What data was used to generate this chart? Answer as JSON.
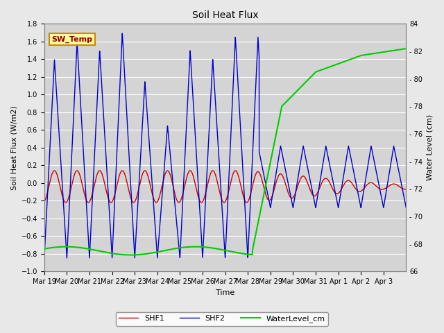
{
  "title": "Soil Heat Flux",
  "ylabel_left": "Soil Heat Flux (W/m2)",
  "ylabel_right": "Water Level (cm)",
  "xlabel": "Time",
  "ylim_left": [
    -1.0,
    1.8
  ],
  "ylim_right": [
    66,
    84
  ],
  "bg_color": "#e8e8e8",
  "plot_bg_color": "#d4d4d4",
  "grid_color": "#ffffff",
  "shf1_color": "#cc0000",
  "shf2_color": "#0000cc",
  "water_color": "#00cc00",
  "legend_label1": "SHF1",
  "legend_label2": "SHF2",
  "legend_label3": "WaterLevel_cm",
  "sw_temp_text": "SW_Temp",
  "sw_temp_bg": "#ffff99",
  "sw_temp_border": "#cc8800",
  "sw_temp_text_color": "#880000",
  "xtick_labels": [
    "Mar 19",
    "Mar 20",
    "Mar 21",
    "Mar 22",
    "Mar 23",
    "Mar 24",
    "Mar 25",
    "Mar 26",
    "Mar 27",
    "Mar 28",
    "Mar 29",
    "Mar 30",
    "Mar 31",
    "Apr 1",
    "Apr 2",
    "Apr 3"
  ],
  "yticks_left": [
    -1.0,
    -0.8,
    -0.6,
    -0.4,
    -0.2,
    0.0,
    0.2,
    0.4,
    0.6,
    0.8,
    1.0,
    1.2,
    1.4,
    1.6,
    1.8
  ],
  "yticks_right": [
    66,
    68,
    70,
    72,
    74,
    76,
    78,
    80,
    82,
    84
  ],
  "figsize": [
    6.4,
    4.8
  ],
  "dpi": 100
}
